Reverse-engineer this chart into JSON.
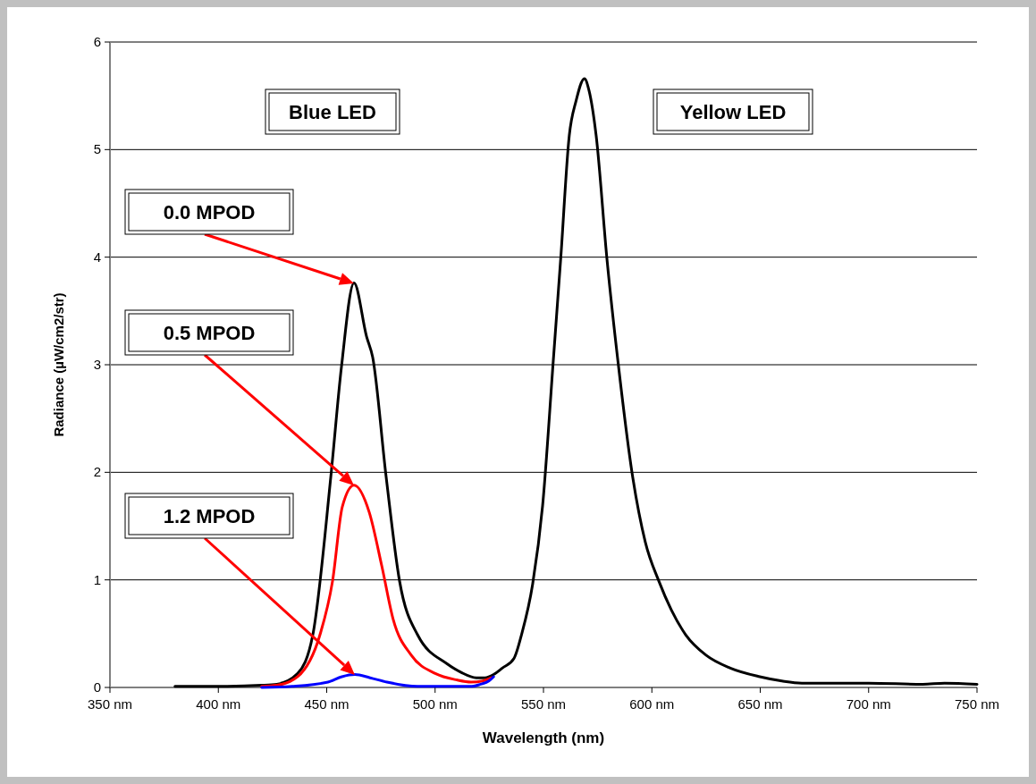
{
  "chart_data": {
    "type": "line",
    "xlabel": "Wavelength (nm)",
    "ylabel": "Radiance (µW/cm2/str)",
    "xlim": [
      350,
      750
    ],
    "ylim": [
      0,
      6
    ],
    "xticks": [
      {
        "value": 350,
        "label": "350 nm"
      },
      {
        "value": 400,
        "label": "400 nm"
      },
      {
        "value": 450,
        "label": "450 nm"
      },
      {
        "value": 500,
        "label": "500 nm"
      },
      {
        "value": 550,
        "label": "550 nm"
      },
      {
        "value": 600,
        "label": "600 nm"
      },
      {
        "value": 650,
        "label": "650 nm"
      },
      {
        "value": 700,
        "label": "700 nm"
      },
      {
        "value": 750,
        "label": "750 nm"
      }
    ],
    "yticks": [
      0,
      1,
      2,
      3,
      4,
      5,
      6
    ],
    "grid": "y",
    "marker": "none",
    "line_style": "solid",
    "series": [
      {
        "color": "#000000",
        "x": [
          380,
          400,
          420,
          427,
          436.6,
          443.6,
          451.9,
          456.8,
          462.6,
          468.4,
          471.2,
          477.4,
          483.6,
          491.9,
          505.5,
          512,
          519,
          523,
          527,
          531,
          536.4,
          540,
          545,
          549.6,
          554.5,
          558,
          561.9,
          565,
          568.9,
          571,
          574.3,
          579.3,
          584.6,
          591.2,
          597,
          603.2,
          609,
          615.6,
          625,
          636.2,
          649.8,
          660,
          669.2,
          700,
          725,
          735,
          750
        ],
        "values": [
          0.01,
          0.01,
          0.02,
          0.03,
          0.13,
          0.49,
          1.96,
          2.98,
          3.76,
          3.26,
          3.07,
          1.96,
          0.99,
          0.49,
          0.22,
          0.14,
          0.09,
          0.09,
          0.12,
          0.18,
          0.27,
          0.5,
          0.96,
          1.69,
          3.03,
          4.0,
          5.13,
          5.45,
          5.66,
          5.55,
          5.13,
          3.98,
          2.99,
          1.95,
          1.35,
          0.99,
          0.72,
          0.49,
          0.3,
          0.18,
          0.1,
          0.06,
          0.04,
          0.04,
          0.03,
          0.04,
          0.03
        ]
      },
      {
        "color": "#ff0000",
        "x": [
          420,
          427,
          436.6,
          446.9,
          452.7,
          457.2,
          462.6,
          469.6,
          475.4,
          480.7,
          489,
          500.1,
          510,
          516.6,
          522,
          526
        ],
        "values": [
          0.01,
          0.02,
          0.1,
          0.49,
          0.99,
          1.68,
          1.88,
          1.63,
          1.13,
          0.63,
          0.3,
          0.13,
          0.07,
          0.05,
          0.06,
          0.09
        ]
      },
      {
        "color": "#0000ff",
        "x": [
          420,
          434,
          450.6,
          457,
          463,
          470,
          477.8,
          491.9,
          517,
          521,
          524.8,
          527
        ],
        "values": [
          0,
          0.01,
          0.05,
          0.1,
          0.12,
          0.09,
          0.05,
          0.01,
          0.01,
          0.03,
          0.06,
          0.1
        ]
      }
    ],
    "annotations": [
      "Blue LED",
      "Yellow LED",
      "0.0 MPOD",
      "0.5 MPOD",
      "1.2 MPOD"
    ]
  }
}
